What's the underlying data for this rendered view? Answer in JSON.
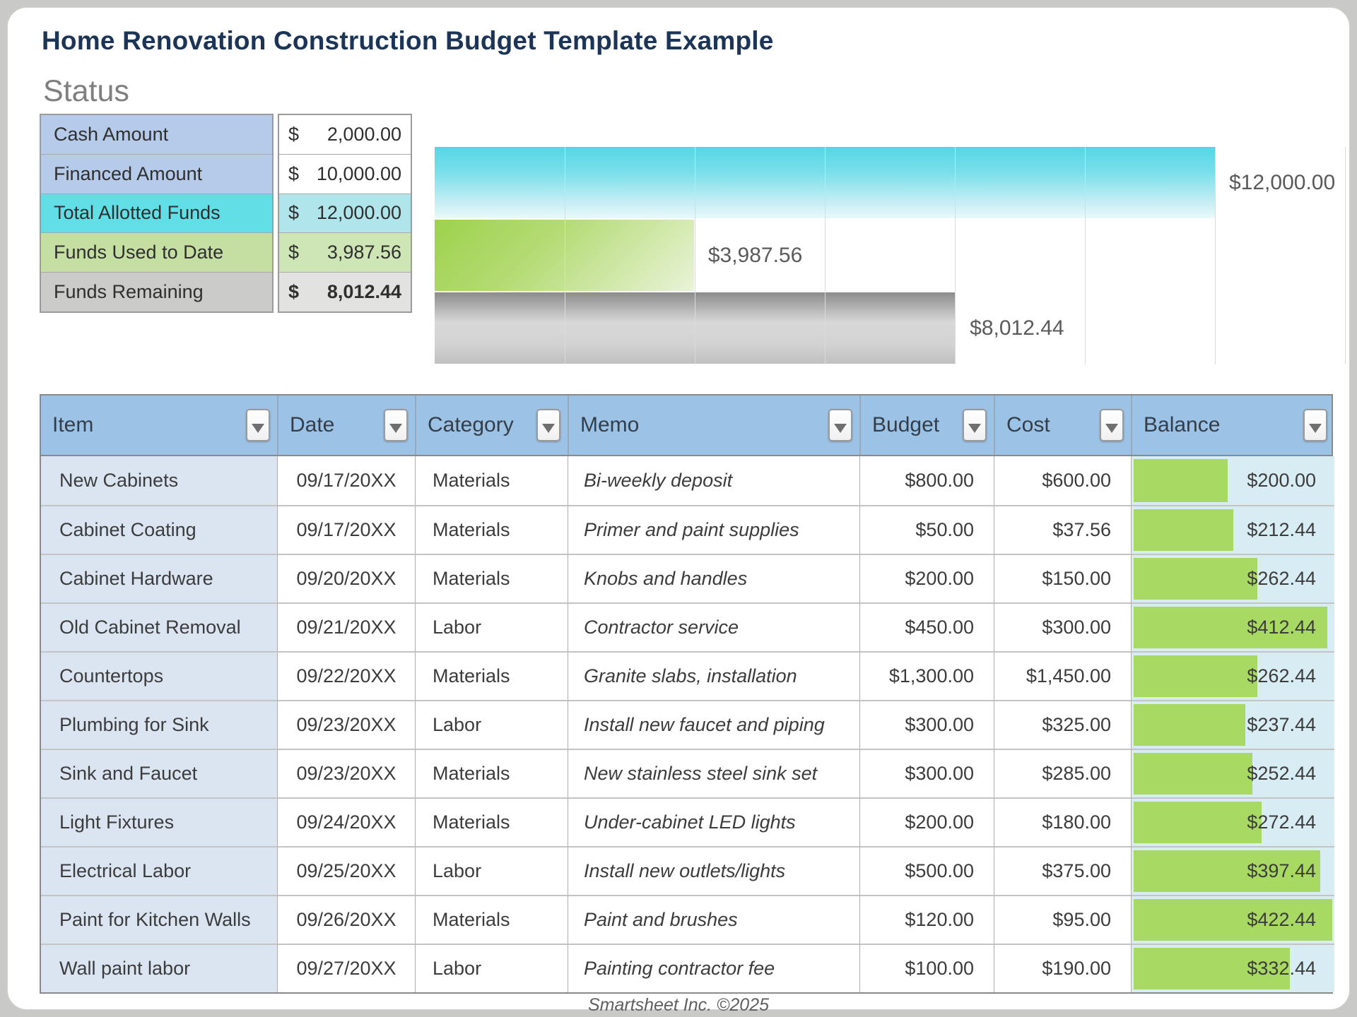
{
  "page": {
    "title": "Home Renovation Construction Budget Template Example",
    "footer": "Smartsheet Inc. ©2025"
  },
  "status": {
    "heading": "Status",
    "rows": [
      {
        "label": "Cash Amount",
        "currency": "$",
        "amount": "2,000.00",
        "variant": "blue",
        "bold": false
      },
      {
        "label": "Financed Amount",
        "currency": "$",
        "amount": "10,000.00",
        "variant": "blue",
        "bold": false
      },
      {
        "label": "Total Allotted Funds",
        "currency": "$",
        "amount": "12,000.00",
        "variant": "cyan",
        "bold": false
      },
      {
        "label": "Funds Used to Date",
        "currency": "$",
        "amount": "3,987.56",
        "variant": "green",
        "bold": false
      },
      {
        "label": "Funds Remaining",
        "currency": "$",
        "amount": "8,012.44",
        "variant": "gray",
        "bold": true
      }
    ]
  },
  "chart_data": {
    "type": "bar",
    "orientation": "horizontal",
    "series": [
      {
        "name": "Total Allotted Funds",
        "value": 12000.0,
        "label": "$12,000.00",
        "variant": "cyan"
      },
      {
        "name": "Funds Used to Date",
        "value": 3987.56,
        "label": "$3,987.56",
        "variant": "green"
      },
      {
        "name": "Funds Remaining",
        "value": 8012.44,
        "label": "$8,012.44",
        "variant": "gray"
      }
    ],
    "xlim": [
      0,
      14000
    ],
    "gridline_interval": 2000,
    "gridlines": 7,
    "grid": "vertical-only",
    "legend": "none",
    "axis_tick_labels": "none",
    "colors": {
      "cyan": "#55d6e5",
      "green": "#9ed24c",
      "gray": "#8c8c8c",
      "label_text": "#5a5a5a"
    }
  },
  "budget_table": {
    "columns": [
      {
        "label": "Item"
      },
      {
        "label": "Date"
      },
      {
        "label": "Category"
      },
      {
        "label": "Memo"
      },
      {
        "label": "Budget"
      },
      {
        "label": "Cost"
      },
      {
        "label": "Balance"
      }
    ],
    "balance_bar_max": 422.44,
    "balance_bar_color": "#a8d963",
    "rows": [
      {
        "item": "New Cabinets",
        "date": "09/17/20XX",
        "category": "Materials",
        "memo": "Bi-weekly deposit",
        "budget": "$800.00",
        "cost": "$600.00",
        "balance": "$200.00",
        "balance_value": 200.0
      },
      {
        "item": "Cabinet Coating",
        "date": "09/17/20XX",
        "category": "Materials",
        "memo": "Primer and paint supplies",
        "budget": "$50.00",
        "cost": "$37.56",
        "balance": "$212.44",
        "balance_value": 212.44
      },
      {
        "item": "Cabinet Hardware",
        "date": "09/20/20XX",
        "category": "Materials",
        "memo": "Knobs and handles",
        "budget": "$200.00",
        "cost": "$150.00",
        "balance": "$262.44",
        "balance_value": 262.44
      },
      {
        "item": "Old Cabinet Removal",
        "date": "09/21/20XX",
        "category": "Labor",
        "memo": "Contractor service",
        "budget": "$450.00",
        "cost": "$300.00",
        "balance": "$412.44",
        "balance_value": 412.44
      },
      {
        "item": "Countertops",
        "date": "09/22/20XX",
        "category": "Materials",
        "memo": "Granite slabs, installation",
        "budget": "$1,300.00",
        "cost": "$1,450.00",
        "balance": "$262.44",
        "balance_value": 262.44
      },
      {
        "item": "Plumbing for Sink",
        "date": "09/23/20XX",
        "category": "Labor",
        "memo": "Install new faucet and piping",
        "budget": "$300.00",
        "cost": "$325.00",
        "balance": "$237.44",
        "balance_value": 237.44
      },
      {
        "item": "Sink and Faucet",
        "date": "09/23/20XX",
        "category": "Materials",
        "memo": "New stainless steel sink set",
        "budget": "$300.00",
        "cost": "$285.00",
        "balance": "$252.44",
        "balance_value": 252.44
      },
      {
        "item": "Light Fixtures",
        "date": "09/24/20XX",
        "category": "Materials",
        "memo": "Under-cabinet LED lights",
        "budget": "$200.00",
        "cost": "$180.00",
        "balance": "$272.44",
        "balance_value": 272.44
      },
      {
        "item": "Electrical Labor",
        "date": "09/25/20XX",
        "category": "Labor",
        "memo": "Install new outlets/lights",
        "budget": "$500.00",
        "cost": "$375.00",
        "balance": "$397.44",
        "balance_value": 397.44
      },
      {
        "item": "Paint for Kitchen Walls",
        "date": "09/26/20XX",
        "category": "Materials",
        "memo": "Paint and brushes",
        "budget": "$120.00",
        "cost": "$95.00",
        "balance": "$422.44",
        "balance_value": 422.44
      },
      {
        "item": "Wall paint labor",
        "date": "09/27/20XX",
        "category": "Labor",
        "memo": "Painting contractor fee",
        "budget": "$100.00",
        "cost": "$190.00",
        "balance": "$332.44",
        "balance_value": 332.44
      }
    ]
  }
}
